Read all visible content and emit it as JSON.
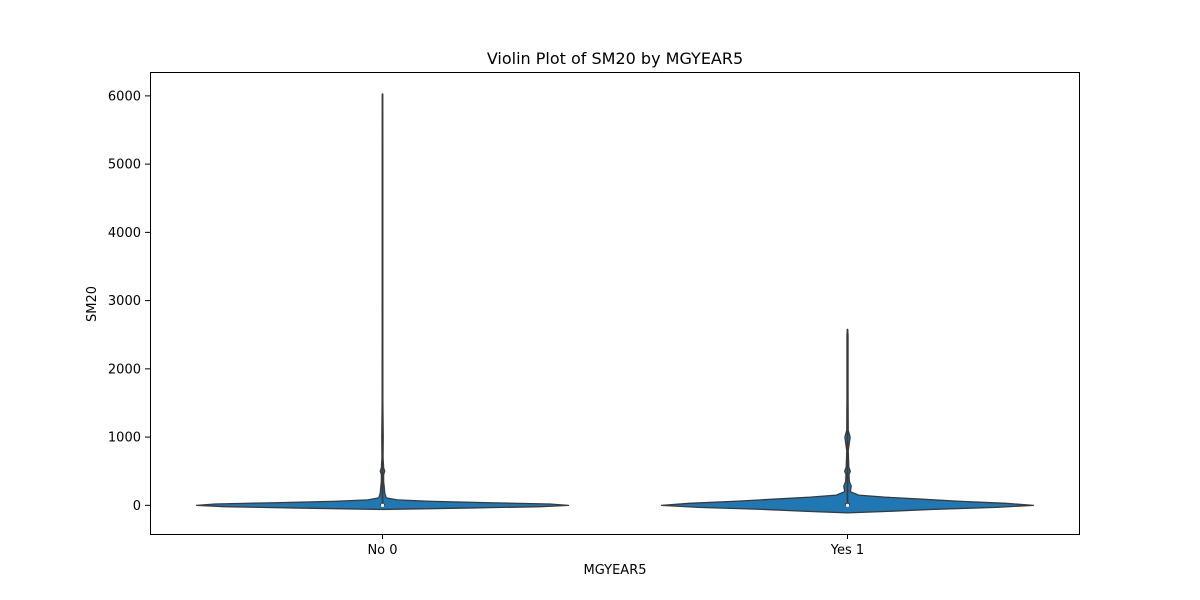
{
  "chart_data": {
    "type": "violin",
    "title": "Violin Plot of SM20 by MGYEAR5",
    "xlabel": "MGYEAR5",
    "ylabel": "SM20",
    "categories": [
      "No 0",
      "Yes 1"
    ],
    "ylim": [
      -420,
      6350
    ],
    "yticks": [
      0,
      1000,
      2000,
      3000,
      4000,
      5000,
      6000
    ],
    "grid": false,
    "legend": "none",
    "violin_color": "#1f77b4",
    "edge_color": "#3a3a3a",
    "violins": [
      {
        "category": "No 0",
        "min": 0,
        "max": 6030,
        "median": 0,
        "q1": 0,
        "q3": 20,
        "density": [
          {
            "y": -60,
            "w": 0.0
          },
          {
            "y": -40,
            "w": 0.45
          },
          {
            "y": -20,
            "w": 0.85
          },
          {
            "y": 0,
            "w": 1.0
          },
          {
            "y": 20,
            "w": 0.9
          },
          {
            "y": 40,
            "w": 0.55
          },
          {
            "y": 60,
            "w": 0.25
          },
          {
            "y": 80,
            "w": 0.08
          },
          {
            "y": 110,
            "w": 0.02
          },
          {
            "y": 180,
            "w": 0.012
          },
          {
            "y": 250,
            "w": 0.01
          },
          {
            "y": 350,
            "w": 0.006
          },
          {
            "y": 450,
            "w": 0.006
          },
          {
            "y": 500,
            "w": 0.012
          },
          {
            "y": 550,
            "w": 0.006
          },
          {
            "y": 700,
            "w": 0.003
          },
          {
            "y": 1000,
            "w": 0.004
          },
          {
            "y": 1500,
            "w": 0.002
          },
          {
            "y": 3000,
            "w": 0.0015
          },
          {
            "y": 5000,
            "w": 0.0015
          },
          {
            "y": 6030,
            "w": 0.0
          }
        ]
      },
      {
        "category": "Yes 1",
        "min": 0,
        "max": 2580,
        "median": 0,
        "q1": 0,
        "q3": 30,
        "density": [
          {
            "y": -110,
            "w": 0.0
          },
          {
            "y": -90,
            "w": 0.2
          },
          {
            "y": -60,
            "w": 0.45
          },
          {
            "y": -30,
            "w": 0.8
          },
          {
            "y": 0,
            "w": 1.0
          },
          {
            "y": 30,
            "w": 0.85
          },
          {
            "y": 60,
            "w": 0.6
          },
          {
            "y": 90,
            "w": 0.4
          },
          {
            "y": 120,
            "w": 0.2
          },
          {
            "y": 150,
            "w": 0.06
          },
          {
            "y": 200,
            "w": 0.015
          },
          {
            "y": 280,
            "w": 0.02
          },
          {
            "y": 350,
            "w": 0.01
          },
          {
            "y": 450,
            "w": 0.008
          },
          {
            "y": 500,
            "w": 0.015
          },
          {
            "y": 560,
            "w": 0.007
          },
          {
            "y": 800,
            "w": 0.004
          },
          {
            "y": 1000,
            "w": 0.014
          },
          {
            "y": 1100,
            "w": 0.004
          },
          {
            "y": 1600,
            "w": 0.003
          },
          {
            "y": 2500,
            "w": 0.003
          },
          {
            "y": 2580,
            "w": 0.0
          }
        ]
      }
    ]
  }
}
